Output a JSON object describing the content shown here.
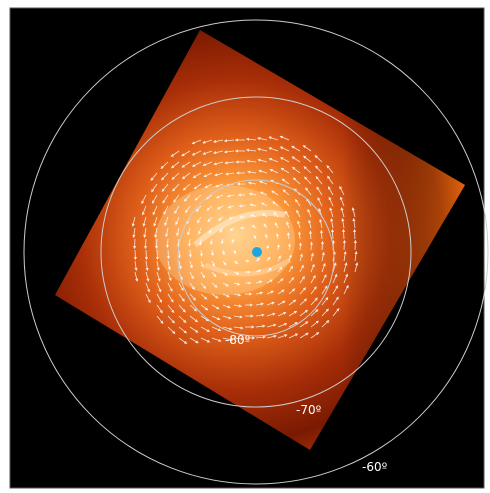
{
  "labels": {
    "lat80": "-80º",
    "lat70": "-70º",
    "lat60": "-60º"
  }
}
